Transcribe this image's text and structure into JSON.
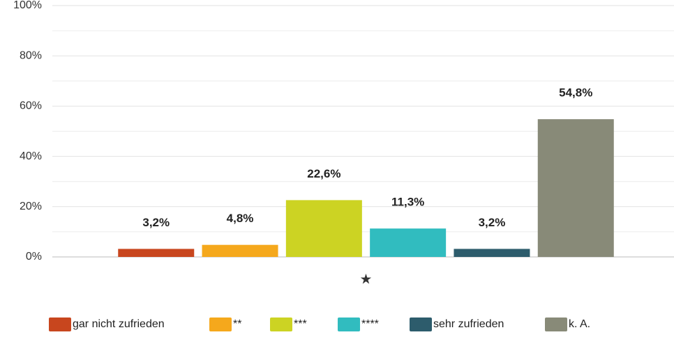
{
  "chart_data": {
    "type": "bar",
    "categories": [
      "★"
    ],
    "series": [
      {
        "name": "gar nicht zufrieden",
        "color": "#c8461e",
        "values": [
          3.2
        ],
        "value_labels": [
          "3,2%"
        ]
      },
      {
        "name": "**",
        "color": "#f5a81c",
        "values": [
          4.8
        ],
        "value_labels": [
          "4,8%"
        ]
      },
      {
        "name": "***",
        "color": "#ccd323",
        "values": [
          22.6
        ],
        "value_labels": [
          "22,6%"
        ]
      },
      {
        "name": "****",
        "color": "#31bcbf",
        "values": [
          11.3
        ],
        "value_labels": [
          "11,3%"
        ]
      },
      {
        "name": "sehr zufrieden",
        "color": "#2d5c6c",
        "values": [
          3.2
        ],
        "value_labels": [
          "3,2%"
        ]
      },
      {
        "name": "k. A.",
        "color": "#888a78",
        "values": [
          54.8
        ],
        "value_labels": [
          "54,8%"
        ]
      }
    ],
    "ylim": [
      0,
      100
    ],
    "yticks": [
      {
        "value": 0,
        "label": "0%"
      },
      {
        "value": 20,
        "label": "20%"
      },
      {
        "value": 40,
        "label": "40%"
      },
      {
        "value": 60,
        "label": "60%"
      },
      {
        "value": 80,
        "label": "80%"
      },
      {
        "value": 100,
        "label": "100%"
      }
    ],
    "minor_yticks": [
      10,
      30,
      50,
      70,
      90
    ],
    "grid": true,
    "legend": "bottom"
  }
}
